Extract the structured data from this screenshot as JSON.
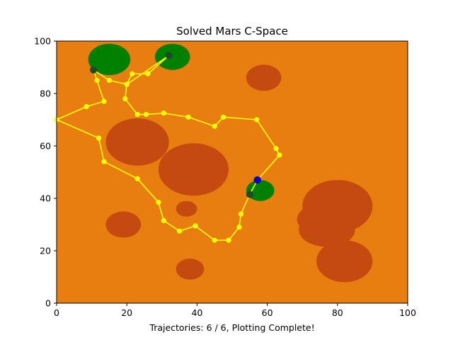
{
  "chart_data": {
    "type": "scatter",
    "title": "Solved Mars C-Space",
    "xlabel": "Trajectories: 6 / 6, Plotting Complete!",
    "ylabel": "",
    "xlim": [
      0,
      100
    ],
    "ylim": [
      0,
      100
    ],
    "xticks": [
      "0",
      "20",
      "40",
      "60",
      "80",
      "100"
    ],
    "yticks": [
      "0",
      "20",
      "40",
      "60",
      "80",
      "100"
    ],
    "grid": false,
    "colors": {
      "background": "#e87e10",
      "obstacle": "#c44a10",
      "goal_region": "#008000",
      "path": "#ffff00",
      "waypoint": "#ffff00",
      "visited_goal": "#1f4a2a",
      "start": "#0000cc"
    },
    "obstacles": [
      {
        "cx": 23,
        "cy": 61.5,
        "rx": 9,
        "ry": 9
      },
      {
        "cx": 39,
        "cy": 51,
        "rx": 10,
        "ry": 10
      },
      {
        "cx": 59,
        "cy": 86,
        "rx": 5,
        "ry": 5
      },
      {
        "cx": 80,
        "cy": 37,
        "rx": 10,
        "ry": 10
      },
      {
        "cx": 77,
        "cy": 32,
        "rx": 8.5,
        "ry": 6.5
      },
      {
        "cx": 77,
        "cy": 28,
        "rx": 8,
        "ry": 6.5
      },
      {
        "cx": 82,
        "cy": 16,
        "rx": 8,
        "ry": 8
      },
      {
        "cx": 19,
        "cy": 30,
        "rx": 5,
        "ry": 5
      },
      {
        "cx": 37,
        "cy": 36,
        "rx": 3,
        "ry": 3
      },
      {
        "cx": 38,
        "cy": 13,
        "rx": 4,
        "ry": 4
      }
    ],
    "goal_regions": [
      {
        "cx": 15,
        "cy": 93,
        "rx": 6,
        "ry": 6
      },
      {
        "cx": 33,
        "cy": 94,
        "rx": 5,
        "ry": 5
      },
      {
        "cx": 58,
        "cy": 43,
        "rx": 4,
        "ry": 4
      }
    ],
    "path": [
      {
        "x": 57.2,
        "y": 47
      },
      {
        "x": 55,
        "y": 41.5
      },
      {
        "x": 52.5,
        "y": 34
      },
      {
        "x": 52,
        "y": 29
      },
      {
        "x": 49,
        "y": 24
      },
      {
        "x": 45,
        "y": 24
      },
      {
        "x": 39.5,
        "y": 29.5
      },
      {
        "x": 35,
        "y": 27.5
      },
      {
        "x": 30.5,
        "y": 31.5
      },
      {
        "x": 29,
        "y": 38.5
      },
      {
        "x": 23,
        "y": 47.5
      },
      {
        "x": 13.5,
        "y": 54
      },
      {
        "x": 12,
        "y": 63
      },
      {
        "x": 0,
        "y": 70
      },
      {
        "x": 8.5,
        "y": 75
      },
      {
        "x": 13.5,
        "y": 77
      },
      {
        "x": 11.5,
        "y": 85
      },
      {
        "x": 10.5,
        "y": 89
      },
      {
        "x": 15,
        "y": 85
      },
      {
        "x": 20,
        "y": 83.5
      },
      {
        "x": 21.5,
        "y": 87.5
      },
      {
        "x": 26,
        "y": 87.5
      },
      {
        "x": 32,
        "y": 94.5
      },
      {
        "x": 20,
        "y": 83.5
      },
      {
        "x": 19.5,
        "y": 78
      },
      {
        "x": 23,
        "y": 72
      },
      {
        "x": 25.5,
        "y": 72
      },
      {
        "x": 30.5,
        "y": 72.5
      },
      {
        "x": 37.5,
        "y": 71
      },
      {
        "x": 45,
        "y": 67.5
      },
      {
        "x": 47.5,
        "y": 71
      },
      {
        "x": 57,
        "y": 70
      },
      {
        "x": 62.5,
        "y": 59
      },
      {
        "x": 63.5,
        "y": 56.5
      },
      {
        "x": 57.2,
        "y": 47
      }
    ],
    "visited_goals": [
      {
        "x": 10.5,
        "y": 89
      },
      {
        "x": 32,
        "y": 94.5
      },
      {
        "x": 55,
        "y": 41.5
      }
    ],
    "start": {
      "x": 57.2,
      "y": 47
    }
  }
}
